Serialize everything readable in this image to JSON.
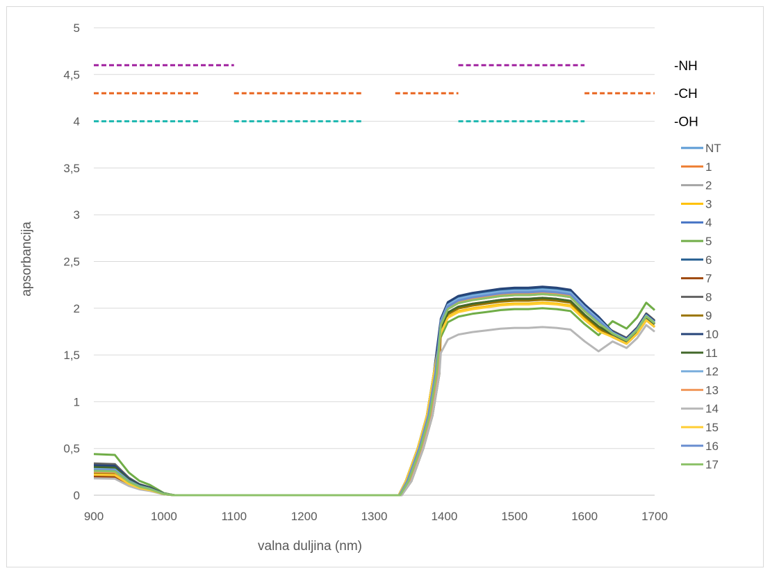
{
  "chart_data": {
    "type": "line",
    "title": "",
    "xlabel": "valna duljina (nm)",
    "ylabel": "apsorbancija",
    "xlim": [
      900,
      1700
    ],
    "ylim": [
      0,
      5
    ],
    "x_ticks": [
      "900",
      "1000",
      "1100",
      "1200",
      "1300",
      "1400",
      "1500",
      "1600",
      "1700"
    ],
    "y_ticks": [
      "0",
      "0,5",
      "1",
      "1,5",
      "2",
      "2,5",
      "3",
      "3,5",
      "4",
      "4,5",
      "5"
    ],
    "grid": "horizontal",
    "legend_position": "right",
    "band_markers": [
      {
        "label": "-NH",
        "y": 4.6,
        "color": "#A0209F",
        "ranges": [
          [
            900,
            1100
          ],
          [
            1420,
            1600
          ]
        ]
      },
      {
        "label": "-CH",
        "y": 4.3,
        "color": "#E8641E",
        "ranges": [
          [
            900,
            1050
          ],
          [
            1100,
            1285
          ],
          [
            1330,
            1420
          ],
          [
            1600,
            1700
          ]
        ]
      },
      {
        "label": "-OH",
        "y": 4.0,
        "color": "#1DB8B0",
        "ranges": [
          [
            900,
            1050
          ],
          [
            1100,
            1285
          ],
          [
            1420,
            1600
          ]
        ]
      }
    ],
    "series": [
      {
        "name": "NT",
        "color": "#5B9BD5",
        "plateau": 2.18,
        "end": 1.85,
        "start": 0.28
      },
      {
        "name": "1",
        "color": "#ED7D31",
        "plateau": 2.14,
        "end": 1.83,
        "start": 0.25
      },
      {
        "name": "2",
        "color": "#A5A5A5",
        "plateau": 2.05,
        "end": 1.8,
        "start": 0.22
      },
      {
        "name": "3",
        "color": "#FFC000",
        "plateau": 2.05,
        "end": 1.8,
        "start": 0.22
      },
      {
        "name": "4",
        "color": "#4472C4",
        "plateau": 2.16,
        "end": 1.84,
        "start": 0.27
      },
      {
        "name": "5",
        "color": "#70AD47",
        "plateau": 1.99,
        "end": 1.98,
        "start": 0.44
      },
      {
        "name": "6",
        "color": "#255E91",
        "plateau": 2.2,
        "end": 1.86,
        "start": 0.3
      },
      {
        "name": "7",
        "color": "#9E480E",
        "plateau": 2.1,
        "end": 1.8,
        "start": 0.2
      },
      {
        "name": "8",
        "color": "#636363",
        "plateau": 2.15,
        "end": 1.87,
        "start": 0.34
      },
      {
        "name": "9",
        "color": "#997300",
        "plateau": 2.08,
        "end": 1.8,
        "start": 0.24
      },
      {
        "name": "10",
        "color": "#264478",
        "plateau": 2.22,
        "end": 1.86,
        "start": 0.32
      },
      {
        "name": "11",
        "color": "#43682B",
        "plateau": 2.1,
        "end": 1.83,
        "start": 0.3
      },
      {
        "name": "12",
        "color": "#7CAFDD",
        "plateau": 2.19,
        "end": 1.85,
        "start": 0.28
      },
      {
        "name": "13",
        "color": "#F1975A",
        "plateau": 2.15,
        "end": 1.84,
        "start": 0.25
      },
      {
        "name": "14",
        "color": "#B7B7B7",
        "plateau": 1.79,
        "end": 1.75,
        "start": 0.18
      },
      {
        "name": "15",
        "color": "#FFCD33",
        "plateau": 2.04,
        "end": 1.8,
        "start": 0.22
      },
      {
        "name": "16",
        "color": "#698ED0",
        "plateau": 2.17,
        "end": 1.84,
        "start": 0.27
      },
      {
        "name": "17",
        "color": "#8CC168",
        "plateau": 2.14,
        "end": 1.84,
        "start": 0.26
      }
    ]
  }
}
